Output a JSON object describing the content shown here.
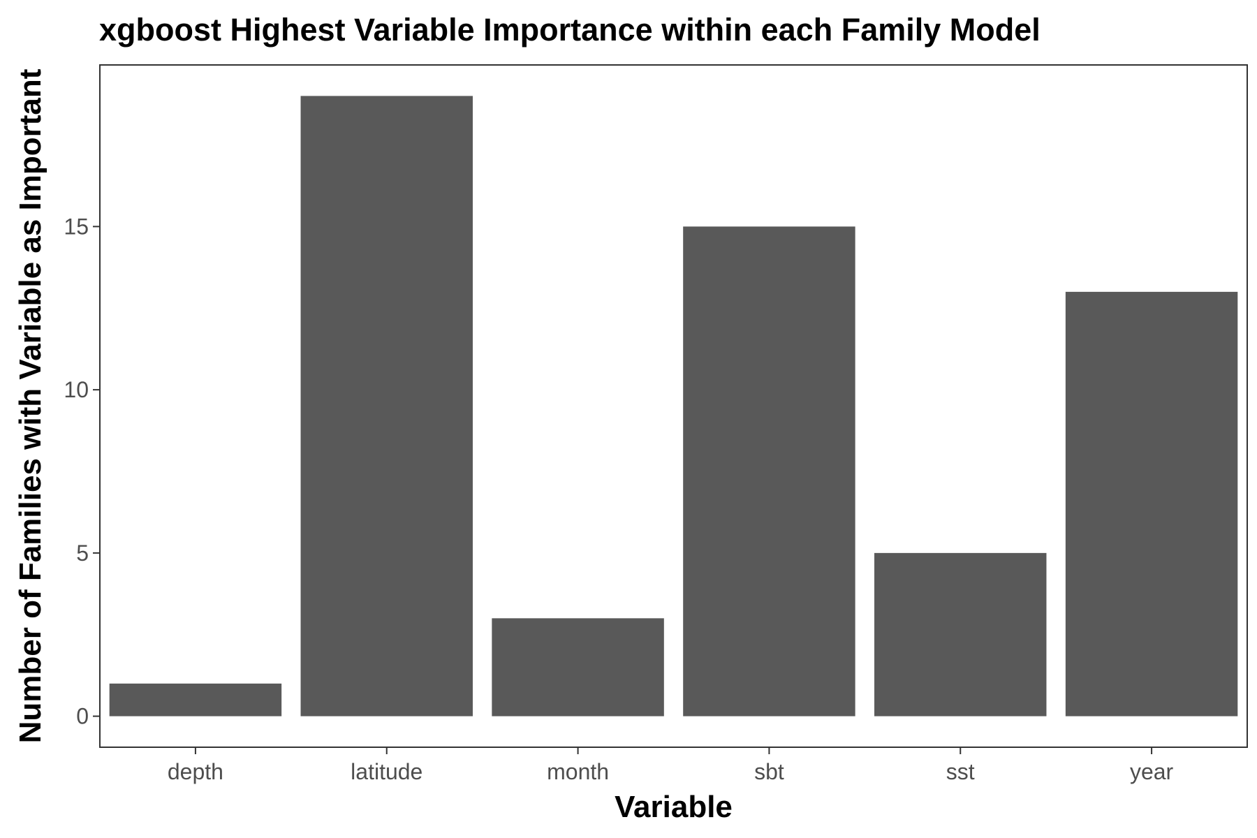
{
  "chart_data": {
    "type": "bar",
    "title": "xgboost Highest Variable Importance within each Family Model",
    "xlabel": "Variable",
    "ylabel": "Number of Families with Variable as Important",
    "categories": [
      "depth",
      "latitude",
      "month",
      "sbt",
      "sst",
      "year"
    ],
    "values": [
      1,
      19,
      3,
      15,
      5,
      13
    ],
    "ylim": [
      -0.95,
      19.95
    ],
    "yticks": [
      0,
      5,
      10,
      15
    ],
    "grid": false,
    "bar_color": "#595959",
    "legend": "none"
  }
}
